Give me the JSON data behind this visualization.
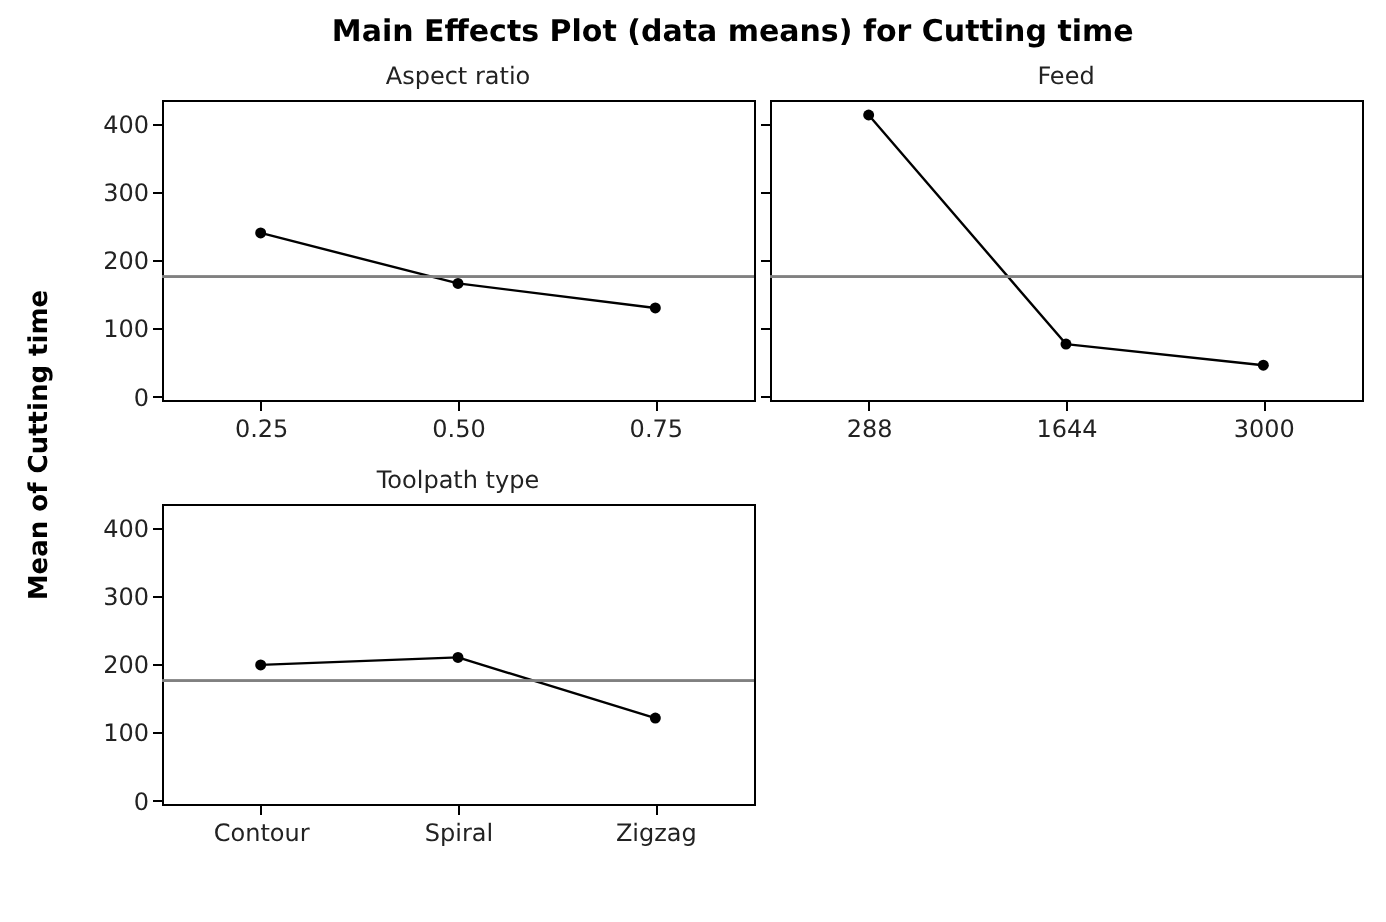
{
  "chart_data": [
    {
      "type": "line",
      "title": "Main Effects Plot (data means) for Cutting time",
      "subtitle": "Aspect ratio",
      "ylabel": "Mean of Cutting time",
      "categories": [
        "0.25",
        "0.50",
        "0.75"
      ],
      "values": [
        240,
        166,
        130
      ],
      "color": "#000000",
      "marker": "circle",
      "ylim": [
        -5,
        435
      ],
      "yticks": [
        0,
        100,
        200,
        300,
        400
      ],
      "ref_lines": [
        {
          "axis": "y",
          "value": 176,
          "color": "#808080"
        }
      ],
      "grid": false
    },
    {
      "type": "line",
      "subtitle": "Feed",
      "categories": [
        "288",
        "1644",
        "3000"
      ],
      "values": [
        413,
        77,
        46
      ],
      "color": "#000000",
      "marker": "circle",
      "ylim": [
        -5,
        435
      ],
      "yticks": [
        0,
        100,
        200,
        300,
        400
      ],
      "tick_labels": "x",
      "ref_lines": [
        {
          "axis": "y",
          "value": 176,
          "color": "#808080"
        }
      ],
      "grid": false
    },
    {
      "type": "line",
      "subtitle": "Toolpath type",
      "categories": [
        "Contour",
        "Spiral",
        "Zigzag"
      ],
      "values": [
        199,
        210,
        121
      ],
      "color": "#000000",
      "marker": "circle",
      "ylim": [
        -5,
        435
      ],
      "yticks": [
        0,
        100,
        200,
        300,
        400
      ],
      "ref_lines": [
        {
          "axis": "y",
          "value": 176,
          "color": "#808080"
        }
      ],
      "grid": false
    }
  ]
}
